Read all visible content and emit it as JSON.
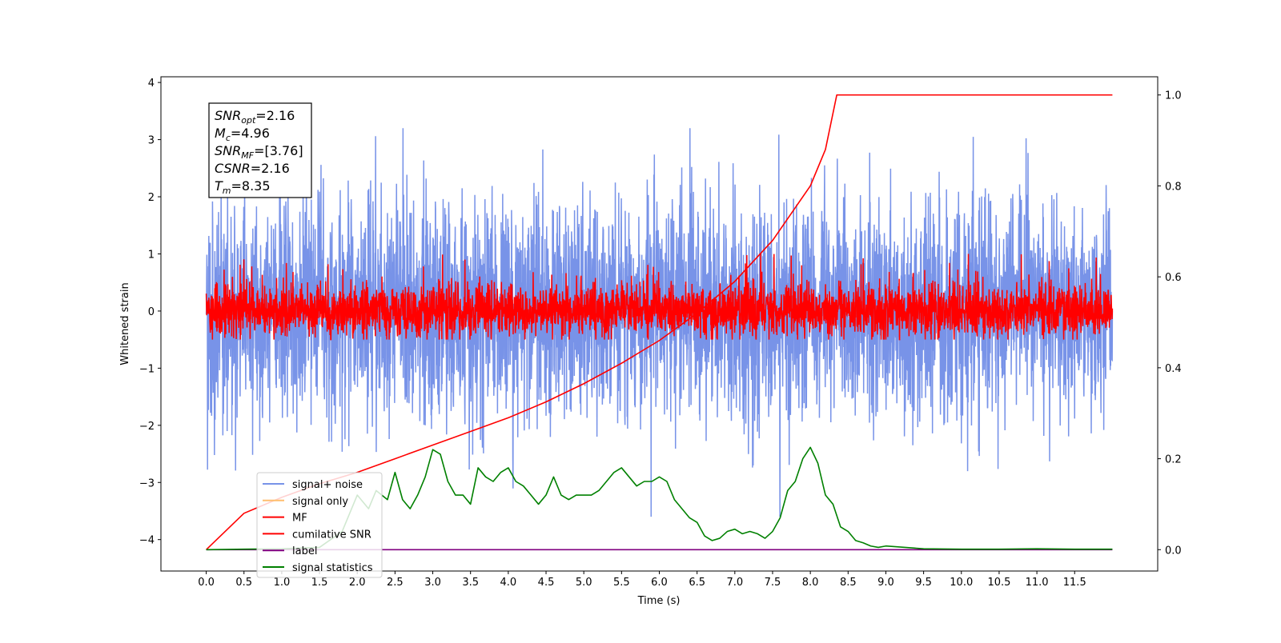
{
  "chart_data": {
    "type": "line",
    "xlabel": "Time (s)",
    "ylabel": "Whitened strain",
    "xlim": [
      -0.6,
      12.6
    ],
    "ylim": [
      -4.55,
      4.1
    ],
    "y2lim": [
      -0.047,
      1.04
    ],
    "x_ticks": [
      0.0,
      0.5,
      1.0,
      1.5,
      2.0,
      2.5,
      3.0,
      3.5,
      4.0,
      4.5,
      5.0,
      5.5,
      6.0,
      6.5,
      7.0,
      7.5,
      8.0,
      8.5,
      9.0,
      9.5,
      10.0,
      10.5,
      11.0,
      11.5
    ],
    "x_tick_labels": [
      "0.0",
      "0.5",
      "1.0",
      "1.5",
      "2.0",
      "2.5",
      "3.0",
      "3.5",
      "4.0",
      "4.5",
      "5.0",
      "5.5",
      "6.0",
      "6.5",
      "7.0",
      "7.5",
      "8.0",
      "8.5",
      "9.0",
      "9.5",
      "10.0",
      "10.5",
      "11.0",
      "11.5"
    ],
    "y_ticks": [
      4,
      3,
      2,
      1,
      0,
      -1,
      -2,
      -3,
      -4
    ],
    "y_tick_labels": [
      "4",
      "3",
      "2",
      "1",
      "0",
      "−1",
      "−2",
      "−3",
      "−4"
    ],
    "y2_ticks": [
      1.0,
      0.8,
      0.6,
      0.4,
      0.2,
      0.0
    ],
    "y2_tick_labels": [
      "1.0",
      "0.8",
      "0.6",
      "0.4",
      "0.2",
      "0.0"
    ],
    "grid": false,
    "legend_position": "lower-left",
    "annotation": [
      {
        "sym": "SNR",
        "sub": "opt",
        "val": "=2.16"
      },
      {
        "sym": "M",
        "sub": "c",
        "val": "=4.96"
      },
      {
        "sym": "SNR",
        "sub": "MF",
        "val": "=[3.76]"
      },
      {
        "sym": "CSNR",
        "sub": "",
        "val": "=2.16"
      },
      {
        "sym": "T",
        "sub": "m",
        "val": "=8.35"
      }
    ],
    "series": [
      {
        "name": "signal+ noise",
        "color": "#7893e8",
        "axis": "left",
        "x_range": [
          0.0,
          12.0
        ],
        "approx_mean": 0.0,
        "approx_std": 1.0,
        "approx_range": [
          -4.15,
          3.7
        ]
      },
      {
        "name": "signal only",
        "color": "#ffbe6e",
        "axis": "left",
        "hidden": true
      },
      {
        "name": "MF",
        "color": "#ff0000",
        "axis": "left",
        "x_range": [
          0.0,
          12.0
        ],
        "approx_range": [
          -0.5,
          1.0
        ]
      },
      {
        "name": "cumilative SNR",
        "color": "#ff0000",
        "axis": "right",
        "x": [
          0.0,
          0.5,
          1.0,
          1.5,
          2.0,
          2.5,
          3.0,
          3.5,
          4.0,
          4.5,
          5.0,
          5.5,
          6.0,
          6.5,
          7.0,
          7.5,
          8.0,
          8.2,
          8.35,
          8.4,
          12.0
        ],
        "y": [
          0.0,
          0.08,
          0.115,
          0.145,
          0.17,
          0.2,
          0.23,
          0.26,
          0.29,
          0.325,
          0.365,
          0.41,
          0.46,
          0.52,
          0.59,
          0.68,
          0.8,
          0.88,
          1.0,
          1.0,
          1.0
        ]
      },
      {
        "name": "label",
        "color": "#800080",
        "axis": "right",
        "x": [
          0.0,
          12.0
        ],
        "y": [
          0.0,
          0.0
        ]
      },
      {
        "name": "signal statistics",
        "color": "#008000",
        "axis": "right",
        "x": [
          0.0,
          0.5,
          1.0,
          1.5,
          1.8,
          2.0,
          2.15,
          2.25,
          2.4,
          2.5,
          2.6,
          2.7,
          2.8,
          2.9,
          3.0,
          3.1,
          3.2,
          3.3,
          3.4,
          3.5,
          3.6,
          3.7,
          3.8,
          3.9,
          4.0,
          4.1,
          4.2,
          4.3,
          4.4,
          4.5,
          4.6,
          4.7,
          4.8,
          4.9,
          5.0,
          5.1,
          5.2,
          5.3,
          5.4,
          5.5,
          5.6,
          5.7,
          5.8,
          5.9,
          6.0,
          6.1,
          6.2,
          6.3,
          6.4,
          6.5,
          6.6,
          6.7,
          6.8,
          6.9,
          7.0,
          7.1,
          7.2,
          7.3,
          7.4,
          7.5,
          7.6,
          7.7,
          7.8,
          7.9,
          8.0,
          8.1,
          8.2,
          8.3,
          8.4,
          8.5,
          8.6,
          8.7,
          8.8,
          8.9,
          9.0,
          9.5,
          10.0,
          10.5,
          11.0,
          11.5,
          12.0
        ],
        "y": [
          0.0,
          0.001,
          0.002,
          0.005,
          0.04,
          0.12,
          0.09,
          0.13,
          0.11,
          0.17,
          0.11,
          0.09,
          0.12,
          0.16,
          0.22,
          0.21,
          0.15,
          0.12,
          0.12,
          0.1,
          0.18,
          0.16,
          0.15,
          0.17,
          0.18,
          0.15,
          0.14,
          0.12,
          0.1,
          0.12,
          0.16,
          0.12,
          0.11,
          0.12,
          0.12,
          0.12,
          0.13,
          0.15,
          0.17,
          0.18,
          0.16,
          0.14,
          0.15,
          0.15,
          0.16,
          0.15,
          0.11,
          0.09,
          0.07,
          0.06,
          0.03,
          0.02,
          0.025,
          0.04,
          0.045,
          0.035,
          0.04,
          0.035,
          0.025,
          0.04,
          0.07,
          0.13,
          0.15,
          0.2,
          0.225,
          0.19,
          0.12,
          0.1,
          0.05,
          0.04,
          0.02,
          0.015,
          0.008,
          0.005,
          0.008,
          0.002,
          0.001,
          0.001,
          0.002,
          0.001,
          0.001
        ]
      }
    ]
  }
}
